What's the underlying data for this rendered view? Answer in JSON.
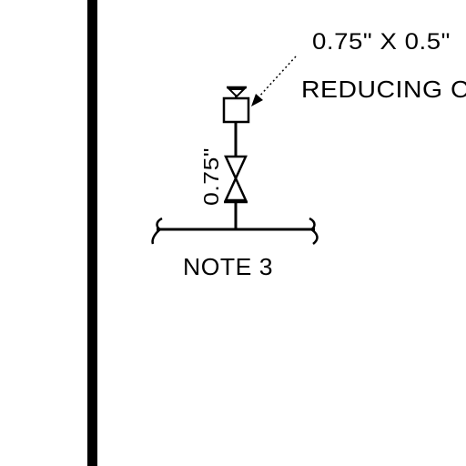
{
  "diagram": {
    "callout_size": "0.75\" X 0.5\"",
    "callout_name": "REDUCING C",
    "pipe_size": "0.75\"",
    "note": "NOTE 3"
  },
  "colors": {
    "ink": "#000000",
    "background": "#ffffff"
  },
  "icons": {
    "valve": "gate-valve-icon",
    "reducer": "reducing-coupling-icon",
    "cap": "pipe-cap-icon",
    "break_marks": "pipe-break-icon"
  }
}
